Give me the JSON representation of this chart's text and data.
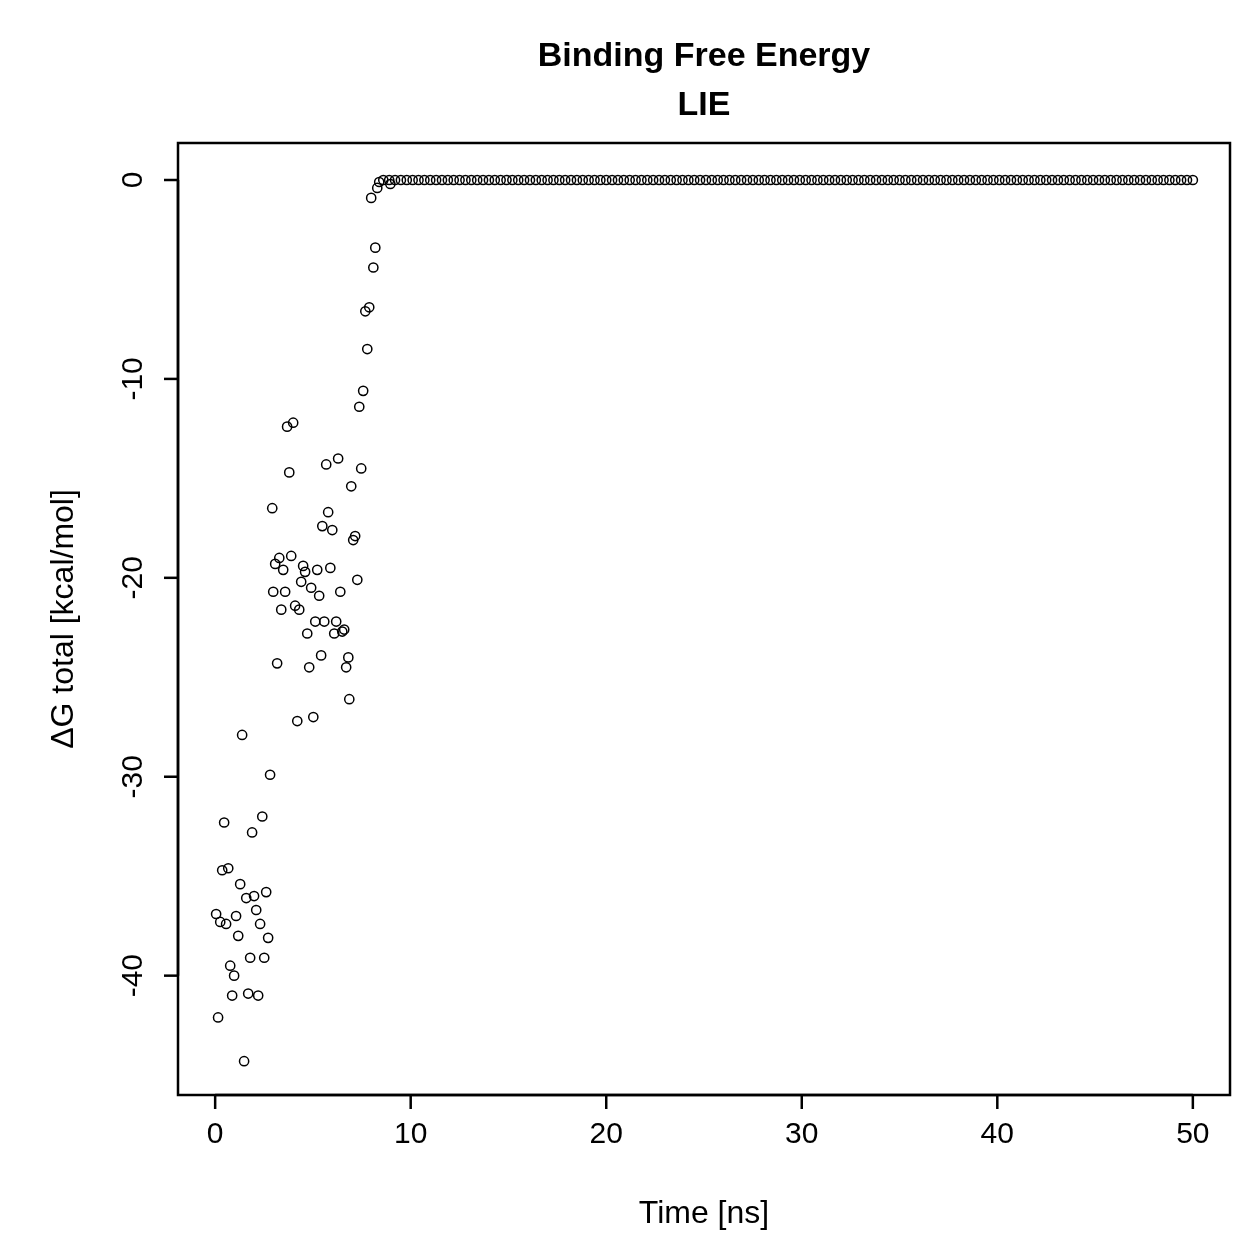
{
  "chart_data": {
    "type": "scatter",
    "title": "Binding Free Energy",
    "subtitle": "LIE",
    "xlabel": "Time [ns]",
    "ylabel": "ΔG total [kcal/mol]",
    "xlim": [
      -1.9,
      51.9
    ],
    "ylim": [
      -46,
      1.86
    ],
    "xticks": [
      0,
      10,
      20,
      30,
      40,
      50
    ],
    "yticks": [
      0,
      -10,
      -20,
      -30,
      -40
    ],
    "grid": false,
    "marker": "circle",
    "series": [
      {
        "color": "#000000",
        "x": [
          0.05,
          0.15,
          0.26,
          0.36,
          0.46,
          0.56,
          0.67,
          0.77,
          0.87,
          0.97,
          1.07,
          1.18,
          1.28,
          1.38,
          1.48,
          1.59,
          1.69,
          1.79,
          1.89,
          1.99,
          2.1,
          2.2,
          2.3,
          2.41,
          2.51,
          2.61,
          2.71,
          2.81,
          2.92,
          2.97,
          3.07,
          3.17,
          3.28,
          3.38,
          3.48,
          3.58,
          3.68,
          3.79,
          3.89,
          3.99,
          4.09,
          4.2,
          4.3,
          4.4,
          4.5,
          4.6,
          4.71,
          4.81,
          4.91,
          5.02,
          5.12,
          5.22,
          5.32,
          5.42,
          5.48,
          5.58,
          5.68,
          5.78,
          5.89,
          5.99,
          6.09,
          6.19,
          6.29,
          6.4,
          6.5,
          6.6,
          6.7,
          6.81,
          6.86,
          6.96,
          7.06,
          7.16,
          7.27,
          7.37,
          7.47,
          7.57,
          7.68,
          7.78,
          7.88,
          7.98,
          8.09,
          8.19,
          8.29,
          8.39,
          8.96
        ],
        "values": [
          -36.9,
          -42.1,
          -37.3,
          -34.7,
          -32.3,
          -37.4,
          -34.6,
          -39.5,
          -41,
          -40,
          -37,
          -38,
          -35.4,
          -27.9,
          -44.3,
          -36.1,
          -40.9,
          -39.1,
          -32.8,
          -36,
          -36.7,
          -41,
          -37.4,
          -32,
          -39.1,
          -35.8,
          -38.1,
          -29.9,
          -16.5,
          -20.7,
          -19.3,
          -24.3,
          -19,
          -21.6,
          -19.6,
          -20.7,
          -12.4,
          -14.7,
          -18.9,
          -12.2,
          -21.4,
          -27.2,
          -21.6,
          -20.2,
          -19.4,
          -19.7,
          -22.8,
          -24.5,
          -20.5,
          -27,
          -22.2,
          -19.6,
          -20.9,
          -23.9,
          -17.4,
          -22.2,
          -14.3,
          -16.7,
          -19.5,
          -17.6,
          -22.8,
          -22.2,
          -14,
          -20.7,
          -22.7,
          -22.6,
          -24.5,
          -24,
          -26.1,
          -15.4,
          -18.1,
          -17.9,
          -20.1,
          -11.4,
          -14.5,
          -10.6,
          -6.6,
          -8.5,
          -6.4,
          -0.9,
          -4.4,
          -3.4,
          -0.4,
          -0.1,
          -0.2
        ]
      },
      {
        "color": "#000000",
        "x": [
          8.6,
          8.9,
          9.2,
          9.5,
          9.8,
          10.1,
          10.4,
          10.7,
          11,
          11.3,
          11.6,
          11.9,
          12.2,
          12.5,
          12.8,
          13.1,
          13.4,
          13.7,
          14,
          14.3,
          14.6,
          14.9,
          15.2,
          15.5,
          15.8,
          16.1,
          16.4,
          16.7,
          17,
          17.3,
          17.6,
          17.9,
          18.2,
          18.5,
          18.8,
          19.1,
          19.4,
          19.7,
          20,
          20.3,
          20.6,
          20.9,
          21.2,
          21.5,
          21.8,
          22.1,
          22.4,
          22.7,
          23,
          23.3,
          23.6,
          23.9,
          24.2,
          24.5,
          24.8,
          25.1,
          25.4,
          25.7,
          26,
          26.3,
          26.6,
          26.9,
          27.2,
          27.5,
          27.8,
          28.1,
          28.4,
          28.7,
          29,
          29.3,
          29.6,
          29.9,
          30.2,
          30.5,
          30.8,
          31.1,
          31.4,
          31.7,
          32,
          32.3,
          32.6,
          32.9,
          33.2,
          33.5,
          33.8,
          34.1,
          34.4,
          34.7,
          35,
          35.3,
          35.6,
          35.9,
          36.2,
          36.5,
          36.8,
          37.1,
          37.4,
          37.7,
          38,
          38.3,
          38.6,
          38.9,
          39.2,
          39.5,
          39.8,
          40.1,
          40.4,
          40.7,
          41,
          41.3,
          41.6,
          41.9,
          42.2,
          42.5,
          42.8,
          43.1,
          43.4,
          43.7,
          44,
          44.3,
          44.6,
          44.9,
          45.2,
          45.5,
          45.8,
          46.1,
          46.4,
          46.7,
          47,
          47.3,
          47.6,
          47.9,
          48.2,
          48.5,
          48.8,
          49.1,
          49.4,
          49.7,
          50
        ],
        "values": [
          0,
          0,
          0,
          0,
          0,
          0,
          0,
          0,
          0,
          0,
          0,
          0,
          0,
          0,
          0,
          0,
          0,
          0,
          0,
          0,
          0,
          0,
          0,
          0,
          0,
          0,
          0,
          0,
          0,
          0,
          0,
          0,
          0,
          0,
          0,
          0,
          0,
          0,
          0,
          0,
          0,
          0,
          0,
          0,
          0,
          0,
          0,
          0,
          0,
          0,
          0,
          0,
          0,
          0,
          0,
          0,
          0,
          0,
          0,
          0,
          0,
          0,
          0,
          0,
          0,
          0,
          0,
          0,
          0,
          0,
          0,
          0,
          0,
          0,
          0,
          0,
          0,
          0,
          0,
          0,
          0,
          0,
          0,
          0,
          0,
          0,
          0,
          0,
          0,
          0,
          0,
          0,
          0,
          0,
          0,
          0,
          0,
          0,
          0,
          0,
          0,
          0,
          0,
          0,
          0,
          0,
          0,
          0,
          0,
          0,
          0,
          0,
          0,
          0,
          0,
          0,
          0,
          0,
          0,
          0,
          0,
          0,
          0,
          0,
          0,
          0,
          0,
          0,
          0,
          0,
          0,
          0,
          0,
          0,
          0,
          0,
          0,
          0,
          0
        ]
      }
    ]
  }
}
